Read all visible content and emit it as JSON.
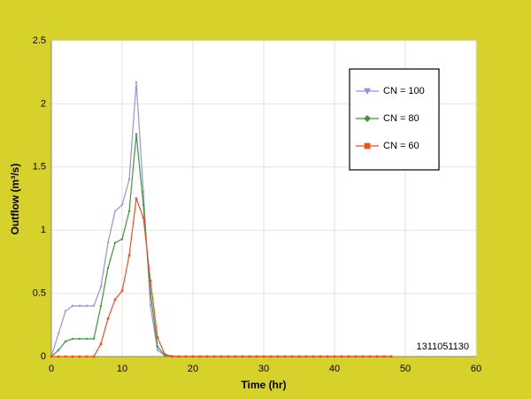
{
  "chart_data": {
    "type": "line",
    "x_label": "Time (hr)",
    "y_label": "Outflow (m³/s)",
    "annotation": "1311051130",
    "x": [
      0,
      1,
      2,
      3,
      4,
      5,
      6,
      7,
      8,
      9,
      10,
      11,
      12,
      13,
      14,
      15,
      16,
      17,
      18,
      19,
      20,
      21,
      22,
      23,
      24,
      25,
      26,
      27,
      28,
      29,
      30,
      31,
      32,
      33,
      34,
      35,
      36,
      37,
      38,
      39,
      40,
      41,
      42,
      43,
      44,
      45,
      46,
      47,
      48
    ],
    "series": [
      {
        "name": "CN = 100",
        "color": "#9b8ee6",
        "marker": "triangle",
        "values": [
          0,
          0.18,
          0.36,
          0.4,
          0.4,
          0.4,
          0.4,
          0.55,
          0.9,
          1.15,
          1.2,
          1.4,
          2.17,
          1.3,
          0.4,
          0.05,
          0.01,
          0.005,
          0,
          0,
          0,
          0,
          0,
          0,
          0,
          0,
          0,
          0,
          0,
          0,
          0,
          0,
          0,
          0,
          0,
          0,
          0,
          0,
          0,
          0,
          0,
          0,
          0,
          0,
          0,
          0,
          0,
          0,
          0
        ]
      },
      {
        "name": "CN = 80",
        "color": "#3a9a3a",
        "marker": "diamond",
        "values": [
          0,
          0.05,
          0.12,
          0.14,
          0.14,
          0.14,
          0.14,
          0.4,
          0.7,
          0.9,
          0.93,
          1.15,
          1.76,
          1.2,
          0.5,
          0.08,
          0.01,
          0,
          0,
          0,
          0,
          0,
          0,
          0,
          0,
          0,
          0,
          0,
          0,
          0,
          0,
          0,
          0,
          0,
          0,
          0,
          0,
          0,
          0,
          0,
          0,
          0,
          0,
          0,
          0,
          0,
          0,
          0,
          0
        ]
      },
      {
        "name": "CN = 60",
        "color": "#f0501e",
        "marker": "square",
        "values": [
          0,
          0,
          0,
          0,
          0,
          0,
          0,
          0.1,
          0.3,
          0.45,
          0.52,
          0.8,
          1.25,
          1.1,
          0.6,
          0.15,
          0.02,
          0,
          0,
          0,
          0,
          0,
          0,
          0,
          0,
          0,
          0,
          0,
          0,
          0,
          0,
          0,
          0,
          0,
          0,
          0,
          0,
          0,
          0,
          0,
          0,
          0,
          0,
          0,
          0,
          0,
          0,
          0,
          0
        ]
      }
    ],
    "xlim": [
      0,
      60
    ],
    "xticks": [
      0,
      10,
      20,
      30,
      40,
      50,
      60
    ],
    "ylim": [
      0,
      2.5
    ],
    "yticks": [
      0,
      0.5,
      1,
      1.5,
      2,
      2.5
    ],
    "grid": true,
    "legend": "upper right"
  }
}
